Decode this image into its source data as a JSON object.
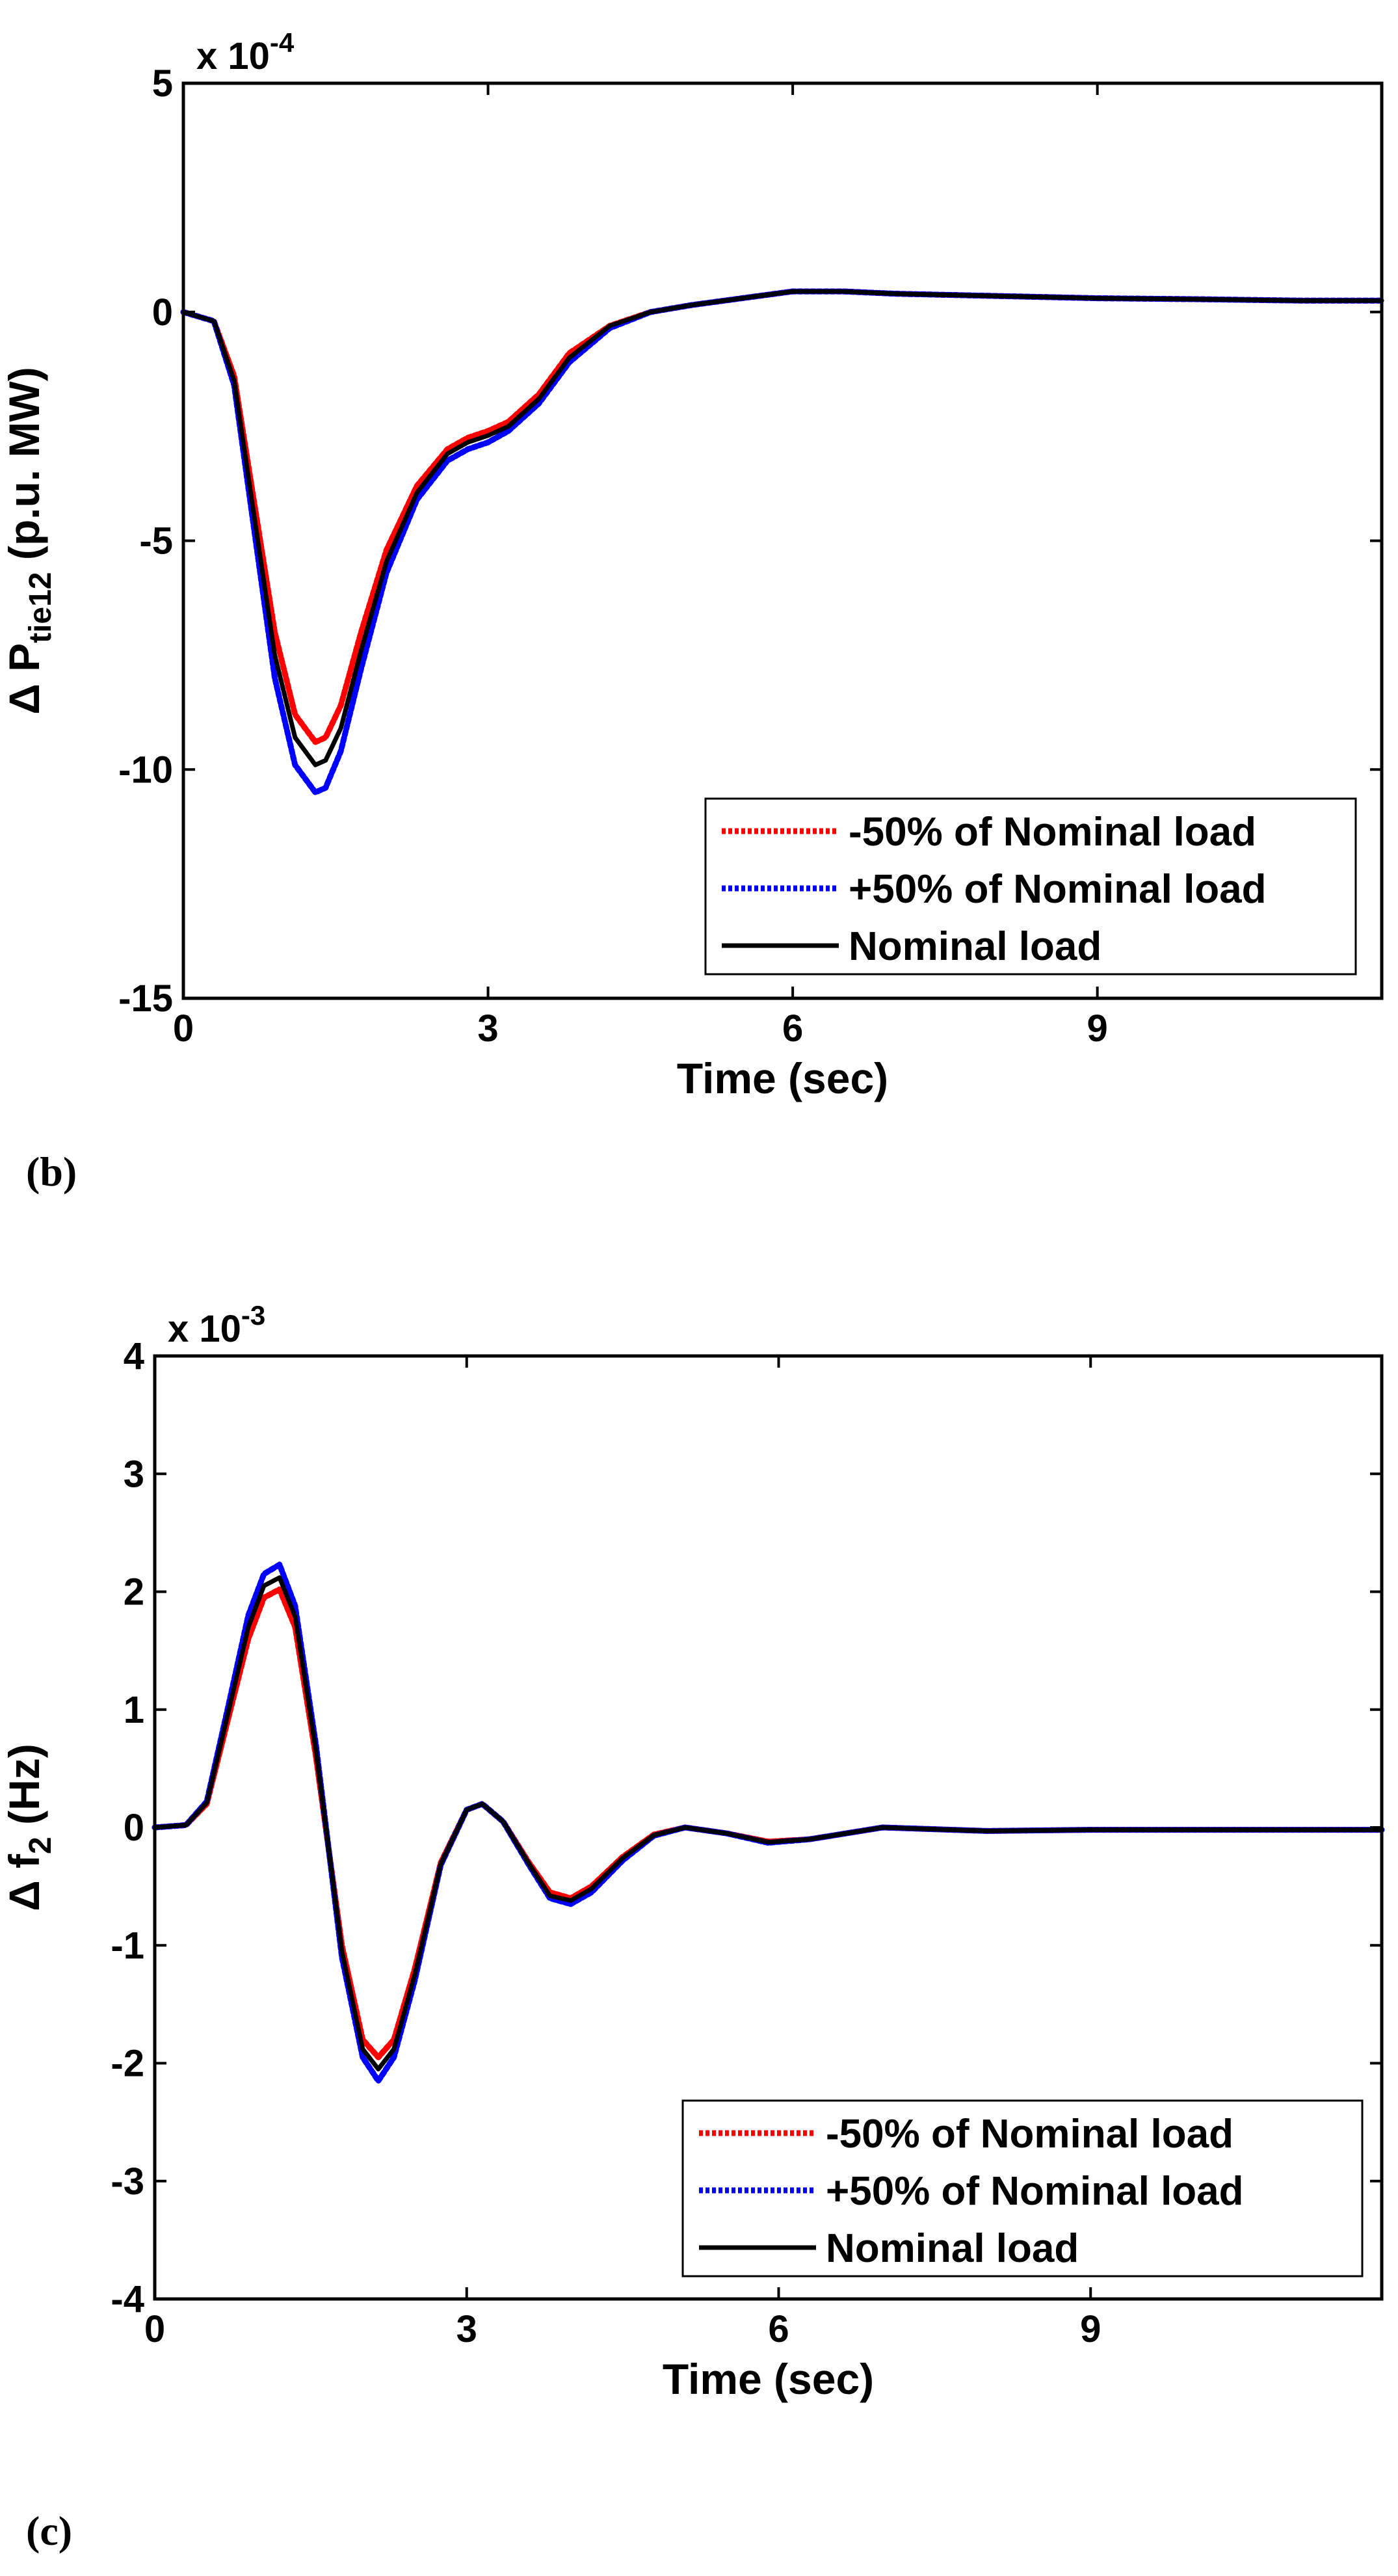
{
  "chart_data": [
    {
      "type": "line",
      "panel_label": "(b)",
      "xlabel": "Time (sec)",
      "ylabel_parts": [
        "Δ P",
        "tie12",
        " (p.u. MW)"
      ],
      "multiplier": [
        "x 10",
        "-4"
      ],
      "xlim": [
        0,
        11.8
      ],
      "ylim": [
        -15,
        5
      ],
      "xticks": [
        0,
        3,
        6,
        9
      ],
      "yticks": [
        -15,
        -10,
        -5,
        0,
        5
      ],
      "legend_position": "bottom-right",
      "series": [
        {
          "name": "-50% of Nominal load",
          "color": "#ff0000",
          "style": "dotted",
          "x": [
            0,
            0.3,
            0.5,
            0.7,
            0.9,
            1.1,
            1.3,
            1.4,
            1.55,
            1.75,
            2.0,
            2.3,
            2.6,
            2.8,
            3.0,
            3.2,
            3.5,
            3.8,
            4.2,
            4.6,
            5.0,
            5.5,
            6.0,
            6.5,
            7.0,
            8.0,
            9.0,
            10.0,
            11.0,
            11.8
          ],
          "y": [
            0,
            -0.2,
            -1.4,
            -4.2,
            -7.0,
            -8.8,
            -9.4,
            -9.3,
            -8.6,
            -7.0,
            -5.2,
            -3.8,
            -3.0,
            -2.75,
            -2.6,
            -2.4,
            -1.8,
            -0.9,
            -0.3,
            0.0,
            0.15,
            0.3,
            0.45,
            0.45,
            0.4,
            0.35,
            0.3,
            0.28,
            0.25,
            0.25
          ]
        },
        {
          "name": "+50% of Nominal load",
          "color": "#0000ff",
          "style": "dotted",
          "x": [
            0,
            0.3,
            0.5,
            0.7,
            0.9,
            1.1,
            1.3,
            1.4,
            1.55,
            1.75,
            2.0,
            2.3,
            2.6,
            2.8,
            3.0,
            3.2,
            3.5,
            3.8,
            4.2,
            4.6,
            5.0,
            5.5,
            6.0,
            6.5,
            7.0,
            8.0,
            9.0,
            10.0,
            11.0,
            11.8
          ],
          "y": [
            0,
            -0.2,
            -1.6,
            -4.8,
            -8.0,
            -9.9,
            -10.5,
            -10.4,
            -9.6,
            -7.8,
            -5.7,
            -4.1,
            -3.25,
            -3.0,
            -2.85,
            -2.6,
            -2.0,
            -1.1,
            -0.35,
            0.0,
            0.15,
            0.3,
            0.45,
            0.45,
            0.4,
            0.35,
            0.3,
            0.28,
            0.25,
            0.25
          ]
        },
        {
          "name": "Nominal load",
          "color": "#000000",
          "style": "solid",
          "x": [
            0,
            0.3,
            0.5,
            0.7,
            0.9,
            1.1,
            1.3,
            1.4,
            1.55,
            1.75,
            2.0,
            2.3,
            2.6,
            2.8,
            3.0,
            3.2,
            3.5,
            3.8,
            4.2,
            4.6,
            5.0,
            5.5,
            6.0,
            6.5,
            7.0,
            8.0,
            9.0,
            10.0,
            11.0,
            11.8
          ],
          "y": [
            0,
            -0.2,
            -1.5,
            -4.5,
            -7.5,
            -9.3,
            -9.9,
            -9.8,
            -9.1,
            -7.4,
            -5.45,
            -3.95,
            -3.1,
            -2.85,
            -2.7,
            -2.5,
            -1.9,
            -1.0,
            -0.3,
            0.0,
            0.15,
            0.3,
            0.45,
            0.45,
            0.4,
            0.35,
            0.3,
            0.28,
            0.25,
            0.25
          ]
        }
      ]
    },
    {
      "type": "line",
      "panel_label": "(c)",
      "xlabel": "Time (sec)",
      "ylabel_parts": [
        "Δ f",
        "2",
        " (Hz)"
      ],
      "multiplier": [
        "x 10",
        "-3"
      ],
      "xlim": [
        0,
        11.8
      ],
      "ylim": [
        -4,
        4
      ],
      "xticks": [
        0,
        3,
        6,
        9
      ],
      "yticks": [
        -4,
        -3,
        -2,
        -1,
        0,
        1,
        2,
        3,
        4
      ],
      "legend_position": "bottom-right",
      "series": [
        {
          "name": "-50% of Nominal load",
          "color": "#ff0000",
          "style": "dotted",
          "x": [
            0,
            0.3,
            0.5,
            0.7,
            0.9,
            1.05,
            1.2,
            1.35,
            1.55,
            1.8,
            2.0,
            2.15,
            2.3,
            2.5,
            2.75,
            3.0,
            3.15,
            3.35,
            3.6,
            3.8,
            4.0,
            4.2,
            4.5,
            4.8,
            5.1,
            5.5,
            5.9,
            6.3,
            7.0,
            8.0,
            9.0,
            10.0,
            11.0,
            11.8
          ],
          "y": [
            0,
            0.02,
            0.2,
            0.9,
            1.6,
            1.95,
            2.02,
            1.7,
            0.6,
            -1.0,
            -1.8,
            -1.95,
            -1.8,
            -1.2,
            -0.3,
            0.15,
            0.2,
            0.05,
            -0.3,
            -0.55,
            -0.6,
            -0.5,
            -0.25,
            -0.06,
            0.0,
            -0.05,
            -0.12,
            -0.1,
            0.0,
            -0.03,
            -0.02,
            -0.02,
            -0.02,
            -0.02
          ]
        },
        {
          "name": "+50% of Nominal load",
          "color": "#0000ff",
          "style": "dotted",
          "x": [
            0,
            0.3,
            0.5,
            0.7,
            0.9,
            1.05,
            1.2,
            1.35,
            1.55,
            1.8,
            2.0,
            2.15,
            2.3,
            2.5,
            2.75,
            3.0,
            3.15,
            3.35,
            3.6,
            3.8,
            4.0,
            4.2,
            4.5,
            4.8,
            5.1,
            5.5,
            5.9,
            6.3,
            7.0,
            8.0,
            9.0,
            10.0,
            11.0,
            11.8
          ],
          "y": [
            0,
            0.02,
            0.22,
            1.0,
            1.8,
            2.15,
            2.23,
            1.88,
            0.7,
            -1.1,
            -1.95,
            -2.15,
            -1.95,
            -1.3,
            -0.32,
            0.15,
            0.2,
            0.05,
            -0.32,
            -0.6,
            -0.65,
            -0.55,
            -0.28,
            -0.07,
            0.0,
            -0.05,
            -0.13,
            -0.1,
            0.0,
            -0.03,
            -0.02,
            -0.02,
            -0.02,
            -0.02
          ]
        },
        {
          "name": "Nominal load",
          "color": "#000000",
          "style": "solid",
          "x": [
            0,
            0.3,
            0.5,
            0.7,
            0.9,
            1.05,
            1.2,
            1.35,
            1.55,
            1.8,
            2.0,
            2.15,
            2.3,
            2.5,
            2.75,
            3.0,
            3.15,
            3.35,
            3.6,
            3.8,
            4.0,
            4.2,
            4.5,
            4.8,
            5.1,
            5.5,
            5.9,
            6.3,
            7.0,
            8.0,
            9.0,
            10.0,
            11.0,
            11.8
          ],
          "y": [
            0,
            0.02,
            0.21,
            0.95,
            1.7,
            2.05,
            2.12,
            1.79,
            0.65,
            -1.05,
            -1.88,
            -2.05,
            -1.88,
            -1.25,
            -0.31,
            0.15,
            0.2,
            0.05,
            -0.31,
            -0.58,
            -0.62,
            -0.52,
            -0.26,
            -0.065,
            0.0,
            -0.05,
            -0.125,
            -0.1,
            0.0,
            -0.03,
            -0.02,
            -0.02,
            -0.02,
            -0.02
          ]
        }
      ]
    }
  ]
}
